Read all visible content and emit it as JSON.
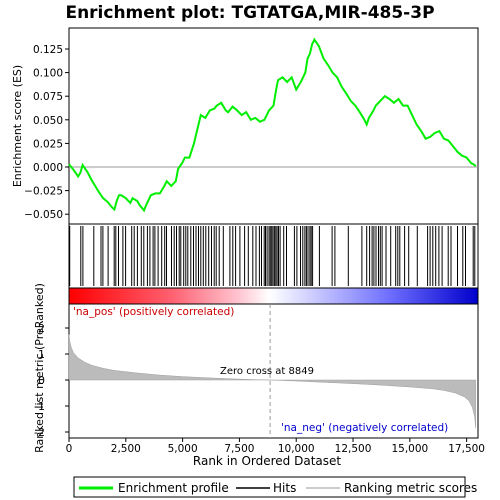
{
  "chart_data": {
    "type": "line",
    "title": "Enrichment plot: TGTATGA,MIR-485-3P",
    "top_panel": {
      "ylabel": "Enrichment score (ES)",
      "ylim": [
        -0.06,
        0.14
      ],
      "yticks": [
        -0.05,
        -0.025,
        0.0,
        0.025,
        0.05,
        0.075,
        0.1,
        0.125
      ],
      "ytick_labels": [
        "−0.050",
        "−0.025",
        "0.000",
        "0.025",
        "0.050",
        "0.075",
        "0.100",
        "0.125"
      ],
      "series": [
        {
          "name": "Enrichment profile",
          "color": "#00ee00",
          "points": [
            [
              0,
              0.003
            ],
            [
              200,
              -0.003
            ],
            [
              400,
              -0.01
            ],
            [
              500,
              -0.006
            ],
            [
              600,
              0.002
            ],
            [
              800,
              -0.005
            ],
            [
              1000,
              -0.014
            ],
            [
              1100,
              -0.018
            ],
            [
              1300,
              -0.026
            ],
            [
              1500,
              -0.033
            ],
            [
              1700,
              -0.037
            ],
            [
              1900,
              -0.043
            ],
            [
              2000,
              -0.045
            ],
            [
              2100,
              -0.036
            ],
            [
              2200,
              -0.03
            ],
            [
              2300,
              -0.03
            ],
            [
              2500,
              -0.033
            ],
            [
              2700,
              -0.038
            ],
            [
              2800,
              -0.033
            ],
            [
              3000,
              -0.036
            ],
            [
              3100,
              -0.04
            ],
            [
              3300,
              -0.046
            ],
            [
              3400,
              -0.04
            ],
            [
              3600,
              -0.03
            ],
            [
              3800,
              -0.028
            ],
            [
              4000,
              -0.028
            ],
            [
              4200,
              -0.02
            ],
            [
              4300,
              -0.015
            ],
            [
              4500,
              -0.02
            ],
            [
              4700,
              -0.015
            ],
            [
              4800,
              -0.002
            ],
            [
              5000,
              0.005
            ],
            [
              5100,
              0.01
            ],
            [
              5300,
              0.01
            ],
            [
              5500,
              0.025
            ],
            [
              5600,
              0.035
            ],
            [
              5700,
              0.045
            ],
            [
              5800,
              0.055
            ],
            [
              6000,
              0.052
            ],
            [
              6200,
              0.06
            ],
            [
              6400,
              0.062
            ],
            [
              6500,
              0.065
            ],
            [
              6700,
              0.068
            ],
            [
              6900,
              0.06
            ],
            [
              7000,
              0.058
            ],
            [
              7200,
              0.064
            ],
            [
              7400,
              0.06
            ],
            [
              7600,
              0.055
            ],
            [
              7800,
              0.058
            ],
            [
              8000,
              0.05
            ],
            [
              8200,
              0.052
            ],
            [
              8400,
              0.048
            ],
            [
              8600,
              0.05
            ],
            [
              8800,
              0.06
            ],
            [
              9000,
              0.065
            ],
            [
              9100,
              0.08
            ],
            [
              9200,
              0.092
            ],
            [
              9400,
              0.095
            ],
            [
              9600,
              0.09
            ],
            [
              9800,
              0.095
            ],
            [
              10000,
              0.082
            ],
            [
              10200,
              0.09
            ],
            [
              10400,
              0.1
            ],
            [
              10500,
              0.115
            ],
            [
              10600,
              0.12
            ],
            [
              10700,
              0.13
            ],
            [
              10800,
              0.135
            ],
            [
              11000,
              0.128
            ],
            [
              11200,
              0.115
            ],
            [
              11400,
              0.108
            ],
            [
              11600,
              0.1
            ],
            [
              11800,
              0.095
            ],
            [
              12000,
              0.085
            ],
            [
              12200,
              0.078
            ],
            [
              12400,
              0.07
            ],
            [
              12600,
              0.065
            ],
            [
              12800,
              0.058
            ],
            [
              13000,
              0.05
            ],
            [
              13100,
              0.045
            ],
            [
              13200,
              0.052
            ],
            [
              13400,
              0.06
            ],
            [
              13500,
              0.065
            ],
            [
              13700,
              0.07
            ],
            [
              13900,
              0.075
            ],
            [
              14100,
              0.072
            ],
            [
              14300,
              0.068
            ],
            [
              14500,
              0.072
            ],
            [
              14700,
              0.065
            ],
            [
              14900,
              0.065
            ],
            [
              15100,
              0.055
            ],
            [
              15300,
              0.045
            ],
            [
              15500,
              0.038
            ],
            [
              15700,
              0.03
            ],
            [
              15900,
              0.032
            ],
            [
              16100,
              0.036
            ],
            [
              16300,
              0.038
            ],
            [
              16500,
              0.03
            ],
            [
              16700,
              0.028
            ],
            [
              16900,
              0.022
            ],
            [
              17100,
              0.016
            ],
            [
              17300,
              0.012
            ],
            [
              17500,
              0.01
            ],
            [
              17700,
              0.004
            ],
            [
              17800,
              0.003
            ],
            [
              17900,
              0.001
            ]
          ]
        }
      ]
    },
    "hits_panel": {
      "hit_positions": [
        30,
        520,
        610,
        1090,
        1410,
        1490,
        1720,
        1990,
        2060,
        2180,
        2370,
        2490,
        2760,
        2870,
        3010,
        3180,
        3290,
        3450,
        3560,
        3700,
        3780,
        3920,
        4080,
        4210,
        4290,
        4510,
        4630,
        4730,
        4850,
        4920,
        5050,
        5140,
        5230,
        5360,
        5480,
        5590,
        5700,
        5800,
        5910,
        6020,
        6150,
        6270,
        6390,
        6480,
        6610,
        6790,
        7080,
        7210,
        7330,
        7520,
        7730,
        7890,
        8090,
        8230,
        8380,
        8470,
        8590,
        8650,
        8720,
        8800,
        8860,
        8920,
        8980,
        9040,
        9100,
        9160,
        9220,
        9290,
        9450,
        9570,
        9920,
        10030,
        10190,
        10290,
        10380,
        10450,
        10520,
        10600,
        10660,
        10720,
        11020,
        11580,
        11700,
        12290,
        12890,
        13100,
        13230,
        13340,
        13420,
        13510,
        13620,
        13700,
        13780,
        13950,
        14160,
        14380,
        14470,
        14560,
        14770,
        14950,
        15330,
        15780,
        15890,
        16010,
        16140,
        16280,
        16420,
        16690,
        16810,
        17100,
        17330,
        17450,
        17790,
        17860
      ]
    },
    "rank_gradient": {
      "stops": [
        "#ff0000",
        "#ffc0c8",
        "#ffffff",
        "#c0c0ff",
        "#0000ff"
      ]
    },
    "bottom_panel": {
      "ylabel": "Ranked list metric (PreRanked)",
      "xlabel": "Rank in Ordered Dataset",
      "ylim": [
        -2,
        3
      ],
      "yticks": [
        -2,
        -1,
        0,
        1,
        2
      ],
      "xlim": [
        0,
        18000
      ],
      "xticks": [
        0,
        2500,
        5000,
        7500,
        10000,
        12500,
        15000,
        17500
      ],
      "xtick_labels": [
        "0",
        "2,500",
        "5,000",
        "7,500",
        "10,000",
        "12,500",
        "15,000",
        "17,500"
      ],
      "metric_curve": [
        [
          0,
          1.75
        ],
        [
          30,
          1.5
        ],
        [
          100,
          1.25
        ],
        [
          200,
          1.05
        ],
        [
          400,
          0.85
        ],
        [
          700,
          0.68
        ],
        [
          1000,
          0.57
        ],
        [
          1500,
          0.45
        ],
        [
          2000,
          0.37
        ],
        [
          3000,
          0.27
        ],
        [
          4000,
          0.19
        ],
        [
          5000,
          0.13
        ],
        [
          6000,
          0.09
        ],
        [
          7000,
          0.05
        ],
        [
          8000,
          0.02
        ],
        [
          8849,
          0.0
        ],
        [
          10000,
          -0.04
        ],
        [
          11000,
          -0.08
        ],
        [
          12000,
          -0.12
        ],
        [
          13000,
          -0.16
        ],
        [
          14000,
          -0.21
        ],
        [
          15000,
          -0.27
        ],
        [
          16000,
          -0.34
        ],
        [
          16500,
          -0.4
        ],
        [
          17000,
          -0.5
        ],
        [
          17400,
          -0.65
        ],
        [
          17600,
          -0.8
        ],
        [
          17750,
          -1.05
        ],
        [
          17850,
          -1.4
        ],
        [
          17900,
          -1.85
        ]
      ],
      "zero_cross_rank": 8849,
      "zero_cross_label": "Zero cross at 8849",
      "pos_label": "'na_pos' (positively correlated)",
      "neg_label": "'na_neg' (negatively correlated)",
      "pos_color": "#cc0000",
      "neg_color": "#0000cc"
    },
    "legend": [
      {
        "name": "Enrichment profile",
        "color": "#00ee00"
      },
      {
        "name": "Hits",
        "color": "#000000"
      },
      {
        "name": "Ranking metric scores",
        "color": "#bbbbbb"
      }
    ]
  }
}
